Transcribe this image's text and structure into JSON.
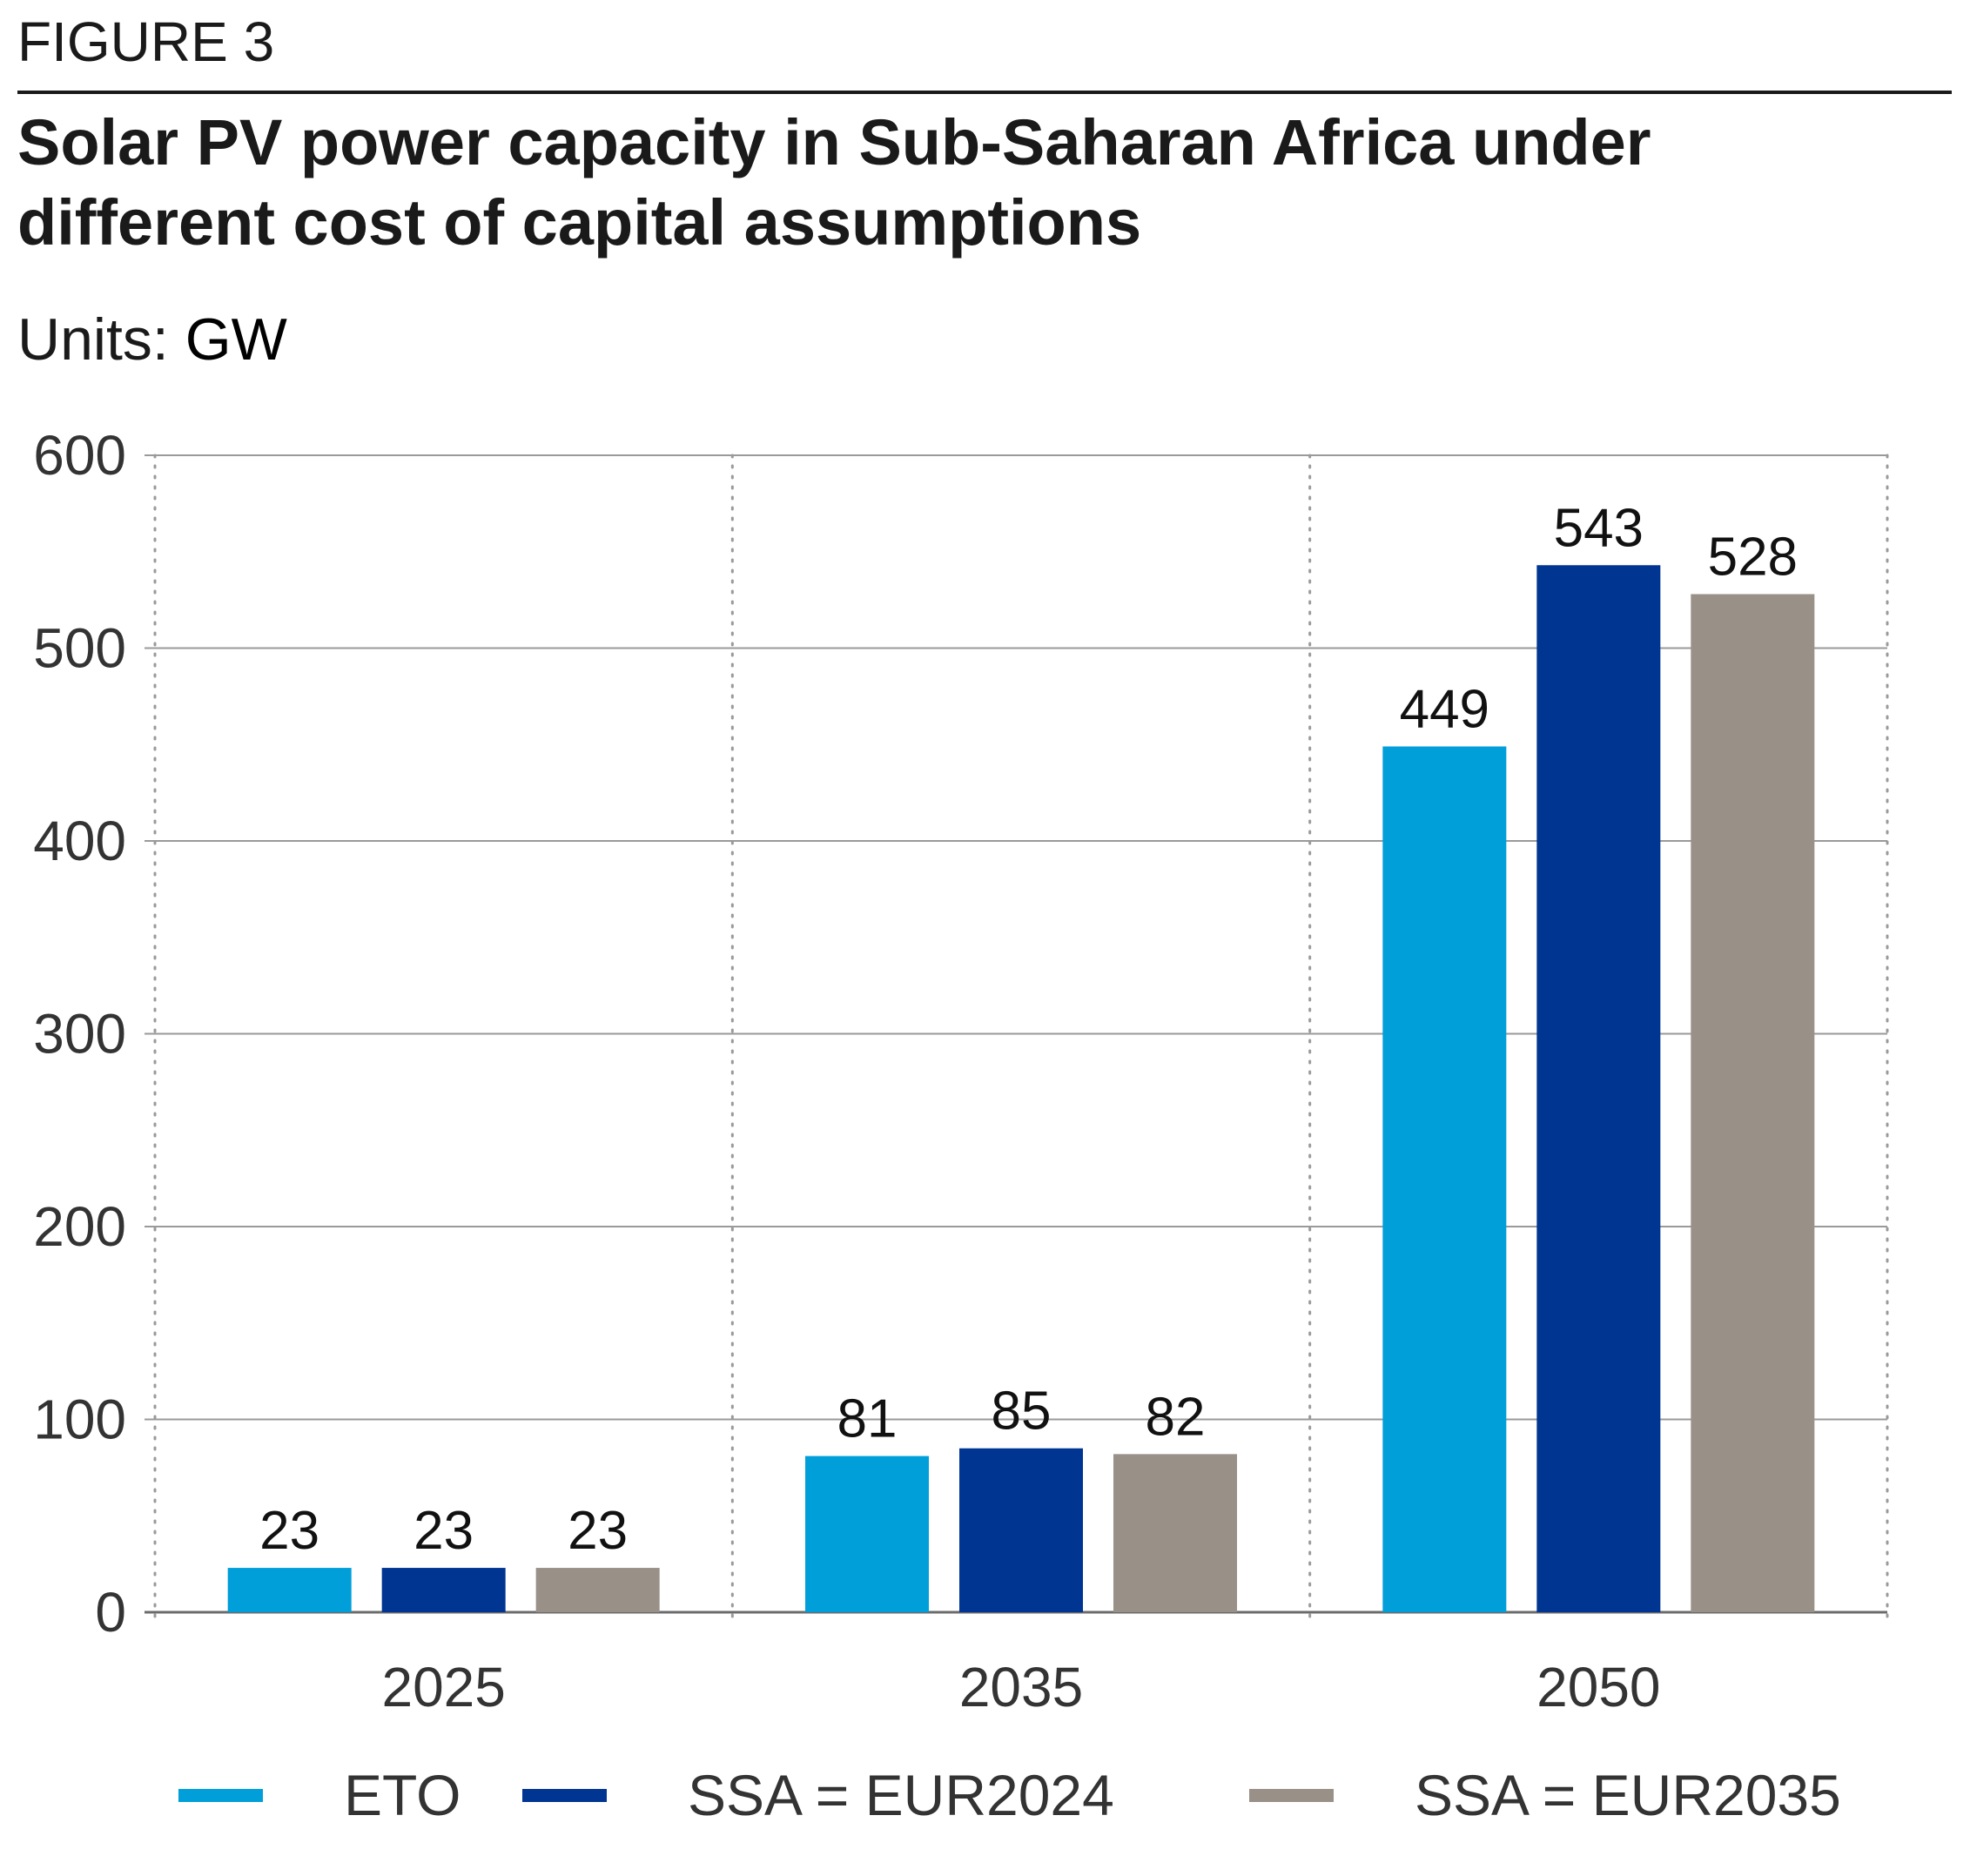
{
  "figure_label": "FIGURE 3",
  "units": {
    "label": "Units:",
    "value": "GW"
  },
  "chart_data": {
    "type": "bar",
    "title": "Solar PV power capacity in Sub-Saharan Africa under\ndifferent cost of capital assumptions",
    "categories": [
      "2025",
      "2035",
      "2050"
    ],
    "series": [
      {
        "name": "ETO",
        "color": "#009FDA",
        "values": [
          23,
          81,
          449
        ]
      },
      {
        "name": "SSA = EUR2024",
        "color": "#003591",
        "values": [
          23,
          85,
          543
        ]
      },
      {
        "name": "SSA = EUR2035",
        "color": "#999088",
        "values": [
          23,
          82,
          528
        ]
      }
    ],
    "ylim": [
      0,
      600
    ],
    "yticks": [
      0,
      100,
      200,
      300,
      400,
      500,
      600
    ],
    "grid": true,
    "legend_position": "bottom",
    "data_labels": true
  }
}
